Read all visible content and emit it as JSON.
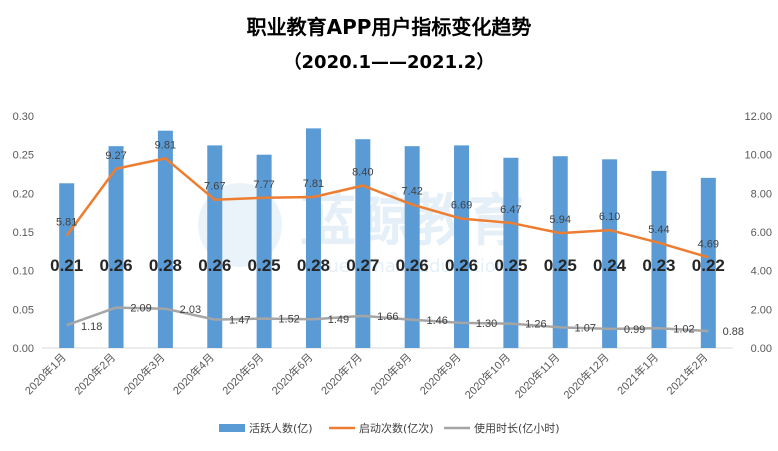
{
  "chart_data": {
    "type": "bar+line",
    "title": "职业教育APP用户指标变化趋势",
    "subtitle": "（2020.1——2021.2）",
    "watermark": "蓝鲸教育",
    "watermark_sub": "Blue Whale Education",
    "categories": [
      "2020年1月",
      "2020年2月",
      "2020年3月",
      "2020年4月",
      "2020年5月",
      "2020年6月",
      "2020年7月",
      "2020年8月",
      "2020年9月",
      "2020年10月",
      "2020年11月",
      "2020年12月",
      "2021年1月",
      "2021年2月"
    ],
    "series": [
      {
        "name": "活跃人数(亿)",
        "type": "bar",
        "axis": "left",
        "color": "#5b9bd5",
        "values": [
          0.213,
          0.261,
          0.281,
          0.262,
          0.25,
          0.284,
          0.27,
          0.261,
          0.262,
          0.246,
          0.248,
          0.244,
          0.229,
          0.22
        ],
        "labels": [
          "0.21",
          "0.26",
          "0.28",
          "0.26",
          "0.25",
          "0.28",
          "0.27",
          "0.26",
          "0.26",
          "0.25",
          "0.25",
          "0.24",
          "0.23",
          "0.22"
        ]
      },
      {
        "name": "启动次数(亿次)",
        "type": "line",
        "axis": "right",
        "color": "#ed7d31",
        "values": [
          5.81,
          9.27,
          9.81,
          7.67,
          7.77,
          7.81,
          8.4,
          7.42,
          6.69,
          6.47,
          5.94,
          6.1,
          5.44,
          4.69
        ],
        "labels": [
          "5.81",
          "9.27",
          "9.81",
          "7.67",
          "7.77",
          "7.81",
          "8.40",
          "7.42",
          "6.69",
          "6.47",
          "5.94",
          "6.10",
          "5.44",
          "4.69"
        ]
      },
      {
        "name": "使用时长(亿小时)",
        "type": "line",
        "axis": "right",
        "color": "#a5a5a5",
        "values": [
          1.18,
          2.09,
          2.03,
          1.47,
          1.52,
          1.49,
          1.66,
          1.46,
          1.3,
          1.26,
          1.07,
          0.99,
          1.02,
          0.88
        ],
        "labels": [
          "1.18",
          "2.09",
          "2.03",
          "1.47",
          "1.52",
          "1.49",
          "1.66",
          "1.46",
          "1.30",
          "1.26",
          "1.07",
          "0.99",
          "1.02",
          "0.88"
        ]
      }
    ],
    "y_left": {
      "min": 0,
      "max": 0.3,
      "ticks": [
        "0.00",
        "0.05",
        "0.10",
        "0.15",
        "0.20",
        "0.25",
        "0.30"
      ]
    },
    "y_right": {
      "min": 0,
      "max": 12,
      "ticks": [
        "0.00",
        "2.00",
        "4.00",
        "6.00",
        "8.00",
        "10.00",
        "12.00"
      ]
    },
    "grid": false,
    "legend_position": "bottom-center"
  }
}
